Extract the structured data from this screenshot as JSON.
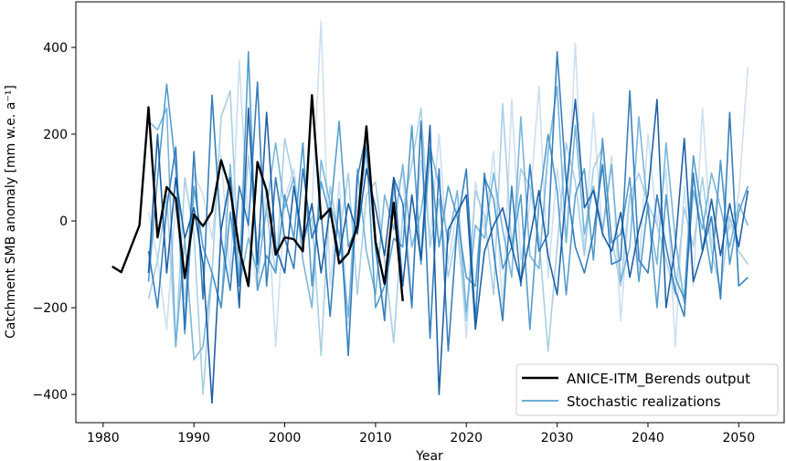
{
  "chart_data": {
    "type": "line",
    "xlabel": "Year",
    "ylabel": "Catchment SMB anomaly [mm w.e. a⁻¹]",
    "xlim": [
      1977,
      2055
    ],
    "ylim": [
      -465,
      505
    ],
    "x_ticks": [
      1980,
      1990,
      2000,
      2010,
      2020,
      2030,
      2040,
      2050
    ],
    "y_ticks": [
      -400,
      -200,
      0,
      200,
      400
    ],
    "legend_position": "bottom-right",
    "legend": [
      {
        "label": "ANICE-ITM_Berends output",
        "color": "#000000"
      },
      {
        "label": "Stochastic realizations",
        "color": "#6baed6"
      }
    ],
    "series": [
      {
        "name": "ANICE-ITM_Berends output",
        "color": "#000000",
        "x": [
          1981,
          1982,
          1984,
          1985,
          1986,
          1987,
          1988,
          1989,
          1990,
          1991,
          1992,
          1993,
          1994,
          1995,
          1996,
          1997,
          1998,
          1999,
          2000,
          2001,
          2002,
          2003,
          2004,
          2005,
          2006,
          2007,
          2008,
          2009,
          2010,
          2011,
          2012,
          2013
        ],
        "y": [
          -105,
          -118,
          -10,
          262,
          -38,
          78,
          52,
          -132,
          15,
          -12,
          22,
          140,
          72,
          -65,
          -150,
          136,
          70,
          -78,
          -38,
          -42,
          -70,
          290,
          5,
          28,
          -98,
          -75,
          -12,
          218,
          -48,
          -145,
          42,
          -185
        ]
      },
      {
        "name": "",
        "color": "#c6dbef",
        "x": [
          1985,
          1986,
          1987,
          1988,
          1989,
          1990,
          1991,
          1992,
          1993,
          1994,
          1995,
          1996,
          1997,
          1998,
          1999,
          2000,
          2001,
          2002,
          2003,
          2004,
          2005,
          2006,
          2007,
          2008,
          2009,
          2010,
          2011,
          2012,
          2013,
          2014,
          2015,
          2016,
          2017,
          2018,
          2019,
          2020,
          2021,
          2022,
          2023,
          2024,
          2025,
          2026,
          2027,
          2028,
          2029,
          2030,
          2031,
          2032,
          2033,
          2034,
          2035,
          2036,
          2037,
          2038,
          2039,
          2040,
          2041,
          2042,
          2043,
          2044,
          2045,
          2046,
          2047,
          2048,
          2049,
          2050,
          2051
        ],
        "y": [
          20,
          -90,
          -250,
          40,
          -180,
          110,
          60,
          -40,
          150,
          -130,
          370,
          -20,
          -160,
          80,
          -290,
          50,
          120,
          -60,
          30,
          460,
          -150,
          90,
          -240,
          40,
          180,
          -70,
          -210,
          60,
          110,
          -180,
          140,
          -40,
          200,
          -100,
          30,
          -270,
          90,
          -20,
          160,
          -210,
          280,
          -90,
          40,
          310,
          -130,
          120,
          -50,
          410,
          -80,
          250,
          -40,
          150,
          -230,
          60,
          -110,
          200,
          -10,
          120,
          -290,
          80,
          -150,
          260,
          -60,
          130,
          -20,
          60,
          355
        ]
      },
      {
        "name": "",
        "color": "#9ecae1",
        "x": [
          1985,
          1986,
          1987,
          1988,
          1989,
          1990,
          1991,
          1992,
          1993,
          1994,
          1995,
          1996,
          1997,
          1998,
          1999,
          2000,
          2001,
          2002,
          2003,
          2004,
          2005,
          2006,
          2007,
          2008,
          2009,
          2010,
          2011,
          2012,
          2013,
          2014,
          2015,
          2016,
          2017,
          2018,
          2019,
          2020,
          2021,
          2022,
          2023,
          2024,
          2025,
          2026,
          2027,
          2028,
          2029,
          2030,
          2031,
          2032,
          2033,
          2034,
          2035,
          2036,
          2037,
          2038,
          2039,
          2040,
          2041,
          2042,
          2043,
          2044,
          2045,
          2046,
          2047,
          2048,
          2049,
          2050,
          2051
        ],
        "y": [
          -180,
          -90,
          60,
          -290,
          100,
          -30,
          -400,
          -120,
          240,
          300,
          -130,
          150,
          -60,
          20,
          -120,
          190,
          90,
          -50,
          10,
          -310,
          80,
          -40,
          110,
          -170,
          60,
          90,
          -90,
          -280,
          20,
          130,
          260,
          -60,
          50,
          -130,
          -20,
          -230,
          70,
          10,
          -170,
          270,
          -60,
          120,
          80,
          -40,
          -300,
          -60,
          180,
          90,
          -80,
          120,
          170,
          -40,
          -150,
          60,
          110,
          40,
          -10,
          -90,
          -170,
          30,
          -60,
          100,
          -70,
          -160,
          10,
          -70,
          -100
        ]
      },
      {
        "name": "",
        "color": "#6baed6",
        "x": [
          1985,
          1986,
          1987,
          1988,
          1989,
          1990,
          1991,
          1992,
          1993,
          1994,
          1995,
          1996,
          1997,
          1998,
          1999,
          2000,
          2001,
          2002,
          2003,
          2004,
          2005,
          2006,
          2007,
          2008,
          2009,
          2010,
          2011,
          2012,
          2013,
          2014,
          2015,
          2016,
          2017,
          2018,
          2019,
          2020,
          2021,
          2022,
          2023,
          2024,
          2025,
          2026,
          2027,
          2028,
          2029,
          2030,
          2031,
          2032,
          2033,
          2034,
          2035,
          2036,
          2037,
          2038,
          2039,
          2040,
          2041,
          2042,
          2043,
          2044,
          2045,
          2046,
          2047,
          2048,
          2049,
          2050,
          2051
        ],
        "y": [
          230,
          210,
          260,
          -290,
          -40,
          -320,
          -290,
          -120,
          -200,
          130,
          -150,
          -40,
          -120,
          30,
          180,
          30,
          100,
          -90,
          -200,
          140,
          40,
          -30,
          -220,
          120,
          -70,
          -170,
          60,
          -20,
          130,
          -60,
          20,
          170,
          80,
          -50,
          70,
          -210,
          -10,
          -40,
          110,
          -20,
          -130,
          240,
          -80,
          -110,
          160,
          310,
          -50,
          220,
          -30,
          80,
          -20,
          130,
          -140,
          -60,
          240,
          20,
          -100,
          180,
          -40,
          -190,
          70,
          -20,
          110,
          30,
          -60,
          40,
          -10
        ]
      },
      {
        "name": "",
        "color": "#4292c6",
        "x": [
          1985,
          1986,
          1987,
          1988,
          1989,
          1990,
          1991,
          1992,
          1993,
          1994,
          1995,
          1996,
          1997,
          1998,
          1999,
          2000,
          2001,
          2002,
          2003,
          2004,
          2005,
          2006,
          2007,
          2008,
          2009,
          2010,
          2011,
          2012,
          2013,
          2014,
          2015,
          2016,
          2017,
          2018,
          2019,
          2020,
          2021,
          2022,
          2023,
          2024,
          2025,
          2026,
          2027,
          2028,
          2029,
          2030,
          2031,
          2032,
          2033,
          2034,
          2035,
          2036,
          2037,
          2038,
          2039,
          2040,
          2041,
          2042,
          2043,
          2044,
          2045,
          2046,
          2047,
          2048,
          2049,
          2050,
          2051
        ],
        "y": [
          -140,
          100,
          315,
          120,
          -260,
          80,
          -60,
          -120,
          -200,
          20,
          -150,
          390,
          -160,
          -80,
          -120,
          60,
          -40,
          180,
          -150,
          90,
          10,
          230,
          -60,
          -10,
          170,
          -200,
          -150,
          -40,
          -60,
          220,
          -100,
          160,
          -60,
          80,
          10,
          -130,
          -150,
          100,
          50,
          -110,
          -60,
          60,
          -250,
          40,
          200,
          70,
          -170,
          60,
          120,
          -90,
          190,
          -50,
          -30,
          100,
          -140,
          40,
          -200,
          60,
          -130,
          -180,
          150,
          10,
          -120,
          140,
          -100,
          20,
          80
        ]
      },
      {
        "name": "",
        "color": "#2171b5",
        "x": [
          1985,
          1986,
          1987,
          1988,
          1989,
          1990,
          1991,
          1992,
          1993,
          1994,
          1995,
          1996,
          1997,
          1998,
          1999,
          2000,
          2001,
          2002,
          2003,
          2004,
          2005,
          2006,
          2007,
          2008,
          2009,
          2010,
          2011,
          2012,
          2013,
          2014,
          2015,
          2016,
          2017,
          2018,
          2019,
          2020,
          2021,
          2022,
          2023,
          2024,
          2025,
          2026,
          2027,
          2028,
          2029,
          2030,
          2031,
          2032,
          2033,
          2034,
          2035,
          2036,
          2037,
          2038,
          2039,
          2040,
          2041,
          2042,
          2043,
          2044,
          2045,
          2046,
          2047,
          2048,
          2049,
          2050,
          2051
        ],
        "y": [
          -70,
          -200,
          30,
          170,
          -250,
          160,
          -180,
          290,
          -40,
          -160,
          80,
          -10,
          320,
          -150,
          100,
          -40,
          -110,
          120,
          -40,
          20,
          -220,
          50,
          -310,
          100,
          200,
          -60,
          -230,
          100,
          40,
          -200,
          230,
          -270,
          120,
          -300,
          -10,
          120,
          -230,
          110,
          -70,
          -230,
          80,
          -150,
          130,
          -70,
          -30,
          390,
          90,
          -60,
          -120,
          -30,
          130,
          -100,
          -90,
          300,
          -90,
          -120,
          60,
          -60,
          -160,
          -220,
          110,
          -70,
          10,
          -180,
          250,
          -150,
          -130
        ]
      },
      {
        "name": "",
        "color": "#08519c",
        "x": [
          1985,
          1986,
          1987,
          1988,
          1989,
          1990,
          1991,
          1992,
          1993,
          1994,
          1995,
          1996,
          1997,
          1998,
          1999,
          2000,
          2001,
          2002,
          2003,
          2004,
          2005,
          2006,
          2007,
          2008,
          2009,
          2010,
          2011,
          2012,
          2013,
          2014,
          2015,
          2016,
          2017,
          2018,
          2019,
          2020,
          2021,
          2022,
          2023,
          2024,
          2025,
          2026,
          2027,
          2028,
          2029,
          2030,
          2031,
          2032,
          2033,
          2034,
          2035,
          2036,
          2037,
          2038,
          2039,
          2040,
          2041,
          2042,
          2043,
          2044,
          2045,
          2046,
          2047,
          2048,
          2049,
          2050,
          2051
        ],
        "y": [
          -120,
          200,
          -120,
          100,
          -40,
          30,
          -100,
          -420,
          -20,
          100,
          -200,
          260,
          -100,
          250,
          -60,
          -120,
          80,
          -50,
          40,
          -120,
          30,
          -80,
          40,
          -30,
          120,
          30,
          -80,
          100,
          -150,
          60,
          -90,
          220,
          -400,
          -20,
          20,
          60,
          -250,
          -70,
          -10,
          30,
          -60,
          -140,
          -40,
          70,
          -80,
          -170,
          70,
          280,
          30,
          70,
          -30,
          -70,
          20,
          -130,
          -20,
          60,
          280,
          -200,
          -60,
          190,
          -140,
          -70,
          50,
          -80,
          40,
          -60,
          70
        ]
      }
    ]
  }
}
